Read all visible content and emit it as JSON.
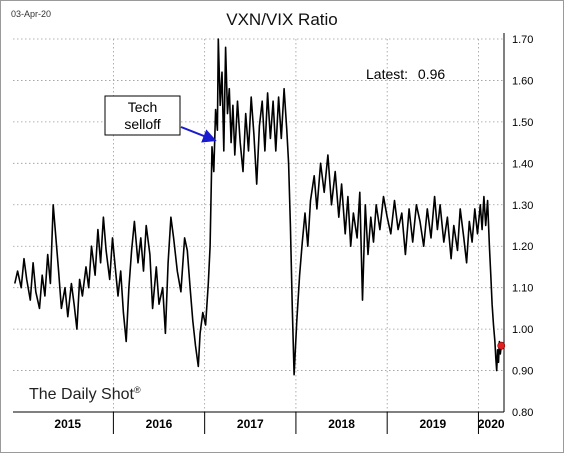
{
  "header": {
    "date": "03-Apr-20"
  },
  "chart_data": {
    "type": "line",
    "title": "VXN/VIX Ratio",
    "ylim": [
      0.8,
      1.7
    ],
    "yticks": [
      0.8,
      0.9,
      1.0,
      1.1,
      1.2,
      1.3,
      1.4,
      1.5,
      1.6,
      1.7
    ],
    "ytick_labels": [
      "0.80",
      "0.90",
      "1.00",
      "1.10",
      "1.20",
      "1.30",
      "1.40",
      "1.50",
      "1.60",
      "1.70"
    ],
    "xlim": [
      2014.9,
      2020.28
    ],
    "year_boundaries": [
      2016.0,
      2017.0,
      2018.0,
      2019.0,
      2020.0
    ],
    "year_labels": [
      {
        "label": "2015",
        "x": 2015.5
      },
      {
        "label": "2016",
        "x": 2016.5
      },
      {
        "label": "2017",
        "x": 2017.5
      },
      {
        "label": "2018",
        "x": 2018.5
      },
      {
        "label": "2019",
        "x": 2019.5
      },
      {
        "label": "2020",
        "x": 2020.14
      }
    ],
    "grid": true,
    "series": [
      {
        "color": "#000000",
        "points": [
          [
            2014.92,
            1.11
          ],
          [
            2014.95,
            1.14
          ],
          [
            2014.99,
            1.1
          ],
          [
            2015.02,
            1.17
          ],
          [
            2015.05,
            1.12
          ],
          [
            2015.09,
            1.07
          ],
          [
            2015.12,
            1.16
          ],
          [
            2015.15,
            1.09
          ],
          [
            2015.19,
            1.05
          ],
          [
            2015.22,
            1.13
          ],
          [
            2015.25,
            1.08
          ],
          [
            2015.28,
            1.18
          ],
          [
            2015.31,
            1.11
          ],
          [
            2015.34,
            1.3
          ],
          [
            2015.37,
            1.22
          ],
          [
            2015.4,
            1.14
          ],
          [
            2015.43,
            1.05
          ],
          [
            2015.47,
            1.1
          ],
          [
            2015.5,
            1.03
          ],
          [
            2015.54,
            1.11
          ],
          [
            2015.57,
            1.06
          ],
          [
            2015.6,
            1.0
          ],
          [
            2015.63,
            1.12
          ],
          [
            2015.66,
            1.08
          ],
          [
            2015.7,
            1.15
          ],
          [
            2015.73,
            1.1
          ],
          [
            2015.76,
            1.2
          ],
          [
            2015.8,
            1.13
          ],
          [
            2015.83,
            1.24
          ],
          [
            2015.86,
            1.16
          ],
          [
            2015.89,
            1.27
          ],
          [
            2015.92,
            1.19
          ],
          [
            2015.96,
            1.12
          ],
          [
            2015.99,
            1.22
          ],
          [
            2016.02,
            1.15
          ],
          [
            2016.05,
            1.08
          ],
          [
            2016.08,
            1.14
          ],
          [
            2016.11,
            1.04
          ],
          [
            2016.14,
            0.97
          ],
          [
            2016.17,
            1.1
          ],
          [
            2016.2,
            1.19
          ],
          [
            2016.23,
            1.26
          ],
          [
            2016.27,
            1.16
          ],
          [
            2016.3,
            1.22
          ],
          [
            2016.33,
            1.14
          ],
          [
            2016.36,
            1.25
          ],
          [
            2016.4,
            1.18
          ],
          [
            2016.43,
            1.05
          ],
          [
            2016.47,
            1.15
          ],
          [
            2016.5,
            1.06
          ],
          [
            2016.54,
            1.1
          ],
          [
            2016.57,
            0.99
          ],
          [
            2016.6,
            1.16
          ],
          [
            2016.63,
            1.27
          ],
          [
            2016.66,
            1.22
          ],
          [
            2016.7,
            1.14
          ],
          [
            2016.74,
            1.09
          ],
          [
            2016.78,
            1.22
          ],
          [
            2016.81,
            1.19
          ],
          [
            2016.84,
            1.1
          ],
          [
            2016.87,
            1.02
          ],
          [
            2016.9,
            0.96
          ],
          [
            2016.93,
            0.91
          ],
          [
            2016.95,
            0.99
          ],
          [
            2016.98,
            1.04
          ],
          [
            2017.01,
            1.01
          ],
          [
            2017.04,
            1.11
          ],
          [
            2017.06,
            1.2
          ],
          [
            2017.08,
            1.44
          ],
          [
            2017.1,
            1.38
          ],
          [
            2017.12,
            1.53
          ],
          [
            2017.14,
            1.48
          ],
          [
            2017.15,
            1.7
          ],
          [
            2017.17,
            1.54
          ],
          [
            2017.19,
            1.62
          ],
          [
            2017.21,
            1.43
          ],
          [
            2017.23,
            1.68
          ],
          [
            2017.25,
            1.52
          ],
          [
            2017.27,
            1.58
          ],
          [
            2017.29,
            1.45
          ],
          [
            2017.31,
            1.54
          ],
          [
            2017.33,
            1.42
          ],
          [
            2017.36,
            1.55
          ],
          [
            2017.39,
            1.45
          ],
          [
            2017.42,
            1.38
          ],
          [
            2017.45,
            1.52
          ],
          [
            2017.48,
            1.43
          ],
          [
            2017.51,
            1.56
          ],
          [
            2017.54,
            1.47
          ],
          [
            2017.57,
            1.35
          ],
          [
            2017.6,
            1.49
          ],
          [
            2017.63,
            1.55
          ],
          [
            2017.66,
            1.43
          ],
          [
            2017.69,
            1.57
          ],
          [
            2017.72,
            1.46
          ],
          [
            2017.75,
            1.55
          ],
          [
            2017.78,
            1.43
          ],
          [
            2017.81,
            1.56
          ],
          [
            2017.84,
            1.46
          ],
          [
            2017.87,
            1.58
          ],
          [
            2017.9,
            1.48
          ],
          [
            2017.92,
            1.4
          ],
          [
            2017.94,
            1.25
          ],
          [
            2017.96,
            1.05
          ],
          [
            2017.98,
            0.89
          ],
          [
            2018.01,
            1.02
          ],
          [
            2018.04,
            1.13
          ],
          [
            2018.07,
            1.21
          ],
          [
            2018.1,
            1.28
          ],
          [
            2018.13,
            1.2
          ],
          [
            2018.16,
            1.31
          ],
          [
            2018.2,
            1.37
          ],
          [
            2018.23,
            1.29
          ],
          [
            2018.27,
            1.4
          ],
          [
            2018.31,
            1.33
          ],
          [
            2018.35,
            1.42
          ],
          [
            2018.39,
            1.3
          ],
          [
            2018.43,
            1.38
          ],
          [
            2018.47,
            1.27
          ],
          [
            2018.5,
            1.35
          ],
          [
            2018.54,
            1.23
          ],
          [
            2018.57,
            1.32
          ],
          [
            2018.6,
            1.2
          ],
          [
            2018.63,
            1.28
          ],
          [
            2018.67,
            1.22
          ],
          [
            2018.7,
            1.33
          ],
          [
            2018.73,
            1.07
          ],
          [
            2018.76,
            1.3
          ],
          [
            2018.79,
            1.18
          ],
          [
            2018.82,
            1.27
          ],
          [
            2018.85,
            1.21
          ],
          [
            2018.88,
            1.3
          ],
          [
            2018.92,
            1.24
          ],
          [
            2018.96,
            1.32
          ],
          [
            2019.0,
            1.27
          ],
          [
            2019.04,
            1.23
          ],
          [
            2019.08,
            1.31
          ],
          [
            2019.12,
            1.24
          ],
          [
            2019.16,
            1.28
          ],
          [
            2019.2,
            1.18
          ],
          [
            2019.24,
            1.29
          ],
          [
            2019.28,
            1.21
          ],
          [
            2019.32,
            1.3
          ],
          [
            2019.36,
            1.26
          ],
          [
            2019.4,
            1.2
          ],
          [
            2019.44,
            1.29
          ],
          [
            2019.48,
            1.22
          ],
          [
            2019.52,
            1.32
          ],
          [
            2019.55,
            1.24
          ],
          [
            2019.58,
            1.3
          ],
          [
            2019.62,
            1.21
          ],
          [
            2019.66,
            1.27
          ],
          [
            2019.7,
            1.17
          ],
          [
            2019.73,
            1.25
          ],
          [
            2019.77,
            1.19
          ],
          [
            2019.8,
            1.29
          ],
          [
            2019.84,
            1.22
          ],
          [
            2019.87,
            1.16
          ],
          [
            2019.9,
            1.26
          ],
          [
            2019.93,
            1.21
          ],
          [
            2019.96,
            1.29
          ],
          [
            2019.99,
            1.23
          ],
          [
            2020.02,
            1.3
          ],
          [
            2020.04,
            1.24
          ],
          [
            2020.06,
            1.32
          ],
          [
            2020.08,
            1.25
          ],
          [
            2020.1,
            1.31
          ],
          [
            2020.12,
            1.2
          ],
          [
            2020.135,
            1.13
          ],
          [
            2020.15,
            1.06
          ],
          [
            2020.165,
            1.01
          ],
          [
            2020.18,
            0.97
          ],
          [
            2020.19,
            0.93
          ],
          [
            2020.2,
            0.9
          ],
          [
            2020.21,
            0.95
          ],
          [
            2020.22,
            0.92
          ],
          [
            2020.23,
            0.97
          ],
          [
            2020.24,
            0.94
          ],
          [
            2020.25,
            0.96
          ]
        ]
      }
    ],
    "latest": {
      "label": "Latest:",
      "value": "0.96",
      "x": 2020.25,
      "y": 0.96,
      "color": "#e02020"
    },
    "annotation": {
      "lines": [
        "Tech",
        "selloff"
      ],
      "target": [
        2017.14,
        1.455
      ],
      "arrow_color": "#1a1ad0"
    }
  },
  "watermark": {
    "text": "The Daily Shot",
    "mark": "®"
  }
}
